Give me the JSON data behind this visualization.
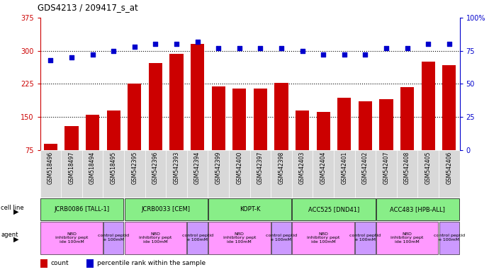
{
  "title": "GDS4213 / 209417_s_at",
  "samples": [
    "GSM518496",
    "GSM518497",
    "GSM518494",
    "GSM518495",
    "GSM542395",
    "GSM542396",
    "GSM542393",
    "GSM542394",
    "GSM542399",
    "GSM542400",
    "GSM542397",
    "GSM542398",
    "GSM542403",
    "GSM542404",
    "GSM542401",
    "GSM542402",
    "GSM542407",
    "GSM542408",
    "GSM542405",
    "GSM542406"
  ],
  "counts": [
    90,
    130,
    155,
    165,
    225,
    272,
    293,
    315,
    220,
    215,
    215,
    228,
    165,
    162,
    193,
    185,
    190,
    218,
    275,
    268
  ],
  "percentiles": [
    68,
    70,
    72,
    75,
    78,
    80,
    80,
    82,
    77,
    77,
    77,
    77,
    75,
    72,
    72,
    72,
    77,
    77,
    80,
    80
  ],
  "ylim_left": [
    75,
    375
  ],
  "ylim_right": [
    0,
    100
  ],
  "yticks_left": [
    75,
    150,
    225,
    300,
    375
  ],
  "yticks_right": [
    0,
    25,
    50,
    75,
    100
  ],
  "bar_color": "#cc0000",
  "dot_color": "#0000cc",
  "cell_lines": [
    {
      "label": "JCRB0086 [TALL-1]",
      "start": 0,
      "end": 4
    },
    {
      "label": "JCRB0033 [CEM]",
      "start": 4,
      "end": 8
    },
    {
      "label": "KOPT-K",
      "start": 8,
      "end": 12
    },
    {
      "label": "ACC525 [DND41]",
      "start": 12,
      "end": 16
    },
    {
      "label": "ACC483 [HPB-ALL]",
      "start": 16,
      "end": 20
    }
  ],
  "agents": [
    {
      "label": "NBD\ninhibitory pept\nide 100mM",
      "start": 0,
      "end": 3,
      "color": "#ff99ff"
    },
    {
      "label": "control peptid\ne 100mM",
      "start": 3,
      "end": 4,
      "color": "#cc99ff"
    },
    {
      "label": "NBD\ninhibitory pept\nide 100mM",
      "start": 4,
      "end": 7,
      "color": "#ff99ff"
    },
    {
      "label": "control peptid\ne 100mM",
      "start": 7,
      "end": 8,
      "color": "#cc99ff"
    },
    {
      "label": "NBD\ninhibitory pept\nide 100mM",
      "start": 8,
      "end": 11,
      "color": "#ff99ff"
    },
    {
      "label": "control peptid\ne 100mM",
      "start": 11,
      "end": 12,
      "color": "#cc99ff"
    },
    {
      "label": "NBD\ninhibitory pept\nide 100mM",
      "start": 12,
      "end": 15,
      "color": "#ff99ff"
    },
    {
      "label": "control peptid\ne 100mM",
      "start": 15,
      "end": 16,
      "color": "#cc99ff"
    },
    {
      "label": "NBD\ninhibitory pept\nide 100mM",
      "start": 16,
      "end": 19,
      "color": "#ff99ff"
    },
    {
      "label": "control peptid\ne 100mM",
      "start": 19,
      "end": 20,
      "color": "#cc99ff"
    }
  ],
  "left_label_color": "#cc0000",
  "right_label_color": "#0000cc",
  "cellline_color": "#88ee88",
  "cellline_edgecolor": "#000000"
}
